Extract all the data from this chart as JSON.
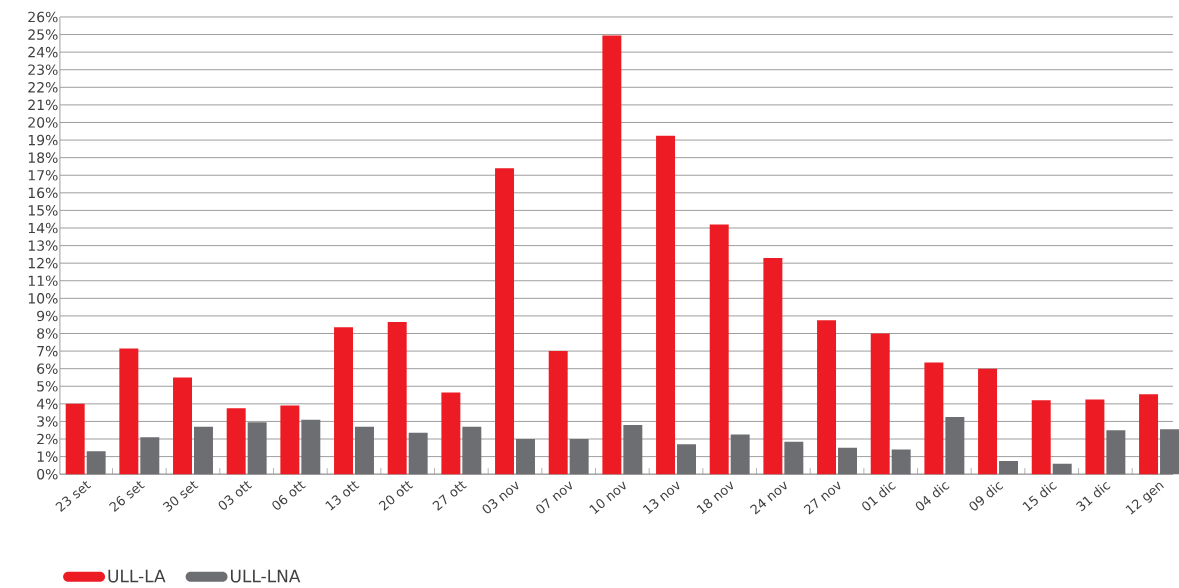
{
  "chart_data": {
    "type": "bar",
    "categories": [
      "23 set",
      "26 set",
      "30 set",
      "03 ott",
      "06 ott",
      "13 ott",
      "20 ott",
      "27 ott",
      "03 nov",
      "07 nov",
      "10 nov",
      "13 nov",
      "18 nov",
      "24 nov",
      "27 nov",
      "01 dic",
      "04 dic",
      "09 dic",
      "15 dic",
      "31 dic",
      "12 gen"
    ],
    "series": [
      {
        "name": "ULL-LA",
        "color": "#ed1c24",
        "values": [
          4.0,
          7.15,
          5.5,
          3.75,
          3.9,
          8.35,
          8.65,
          4.65,
          17.4,
          7.0,
          24.95,
          19.25,
          14.2,
          12.3,
          8.75,
          8.0,
          6.35,
          6.0,
          4.2,
          4.25,
          4.55
        ]
      },
      {
        "name": "ULL-LNA",
        "color": "#6d6e71",
        "values": [
          1.3,
          2.1,
          2.7,
          2.95,
          3.1,
          2.7,
          2.35,
          2.7,
          2.0,
          2.0,
          2.8,
          1.7,
          2.25,
          1.85,
          1.5,
          1.4,
          3.25,
          0.75,
          0.6,
          2.5,
          2.55
        ]
      }
    ],
    "ylim": [
      0,
      26
    ],
    "yticks": [
      {
        "value": 0,
        "label": "0%"
      },
      {
        "value": 1,
        "label": "1%"
      },
      {
        "value": 2,
        "label": "2%"
      },
      {
        "value": 3,
        "label": "3%"
      },
      {
        "value": 4,
        "label": "4%"
      },
      {
        "value": 5,
        "label": "5%"
      },
      {
        "value": 6,
        "label": "6%"
      },
      {
        "value": 7,
        "label": "7%"
      },
      {
        "value": 8,
        "label": "8%"
      },
      {
        "value": 9,
        "label": "9%"
      },
      {
        "value": 10,
        "label": "10%"
      },
      {
        "value": 11,
        "label": "11%"
      },
      {
        "value": 12,
        "label": "12%"
      },
      {
        "value": 13,
        "label": "13%"
      },
      {
        "value": 14,
        "label": "14%"
      },
      {
        "value": 15,
        "label": "15%"
      },
      {
        "value": 16,
        "label": "16%"
      },
      {
        "value": 17,
        "label": "17%"
      },
      {
        "value": 18,
        "label": "18%"
      },
      {
        "value": 19,
        "label": "19%"
      },
      {
        "value": 20,
        "label": "20%"
      },
      {
        "value": 21,
        "label": "21%"
      },
      {
        "value": 22,
        "label": "22%"
      },
      {
        "value": 23,
        "label": "23%"
      },
      {
        "value": 24,
        "label": "24%"
      },
      {
        "value": 25,
        "label": "25%"
      },
      {
        "value": 26,
        "label": "26%"
      }
    ],
    "grid": "y",
    "legend": "bottom left"
  }
}
